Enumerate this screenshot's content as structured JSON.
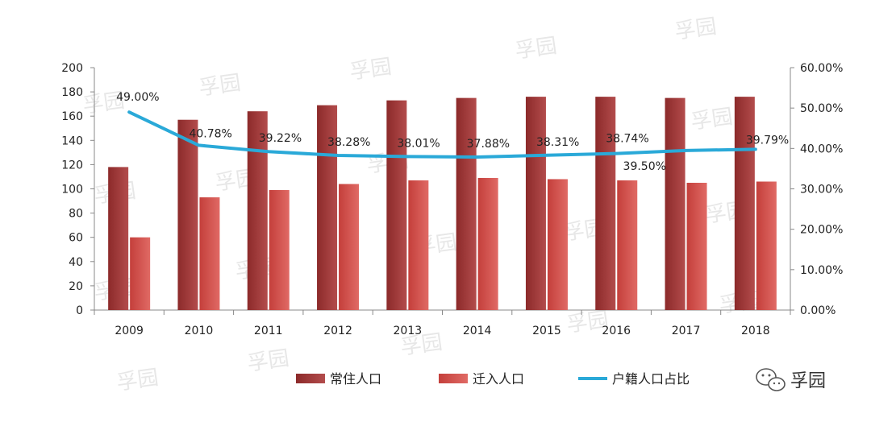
{
  "chart_data": {
    "type": "bar",
    "categories": [
      "2009",
      "2010",
      "2011",
      "2012",
      "2013",
      "2014",
      "2015",
      "2016",
      "2017",
      "2018"
    ],
    "series": [
      {
        "name": "常住人口",
        "type": "bar",
        "axis": "left",
        "values": [
          118,
          157,
          164,
          169,
          173,
          175,
          176,
          176,
          175,
          176
        ],
        "color": "#a23c3c"
      },
      {
        "name": "迁入人口",
        "type": "bar",
        "axis": "left",
        "values": [
          60,
          93,
          99,
          104,
          107,
          109,
          108,
          107,
          105,
          106
        ],
        "color": "#d4534f"
      },
      {
        "name": "户籍人口占比",
        "type": "line",
        "axis": "right",
        "values": [
          49.0,
          40.78,
          39.22,
          38.28,
          38.01,
          37.88,
          38.31,
          38.74,
          39.5,
          39.79
        ],
        "labels": [
          "49.00%",
          "40.78%",
          "39.22%",
          "38.28%",
          "38.01%",
          "37.88%",
          "38.31%",
          "38.74%",
          "39.50%",
          "39.79%"
        ],
        "color": "#2aa9d8"
      }
    ],
    "y_left": {
      "min": 0,
      "max": 200,
      "step": 20,
      "ticks": [
        "0",
        "20",
        "40",
        "60",
        "80",
        "100",
        "120",
        "140",
        "160",
        "180",
        "200"
      ]
    },
    "y_right": {
      "min": 0,
      "max": 60,
      "step": 10,
      "ticks": [
        "0.00%",
        "10.00%",
        "20.00%",
        "30.00%",
        "40.00%",
        "50.00%",
        "60.00%"
      ]
    },
    "legend_position": "bottom",
    "grid": false
  },
  "watermark": {
    "text": "孚园"
  },
  "brand": {
    "text": "孚园",
    "icon": "wechat-icon"
  }
}
